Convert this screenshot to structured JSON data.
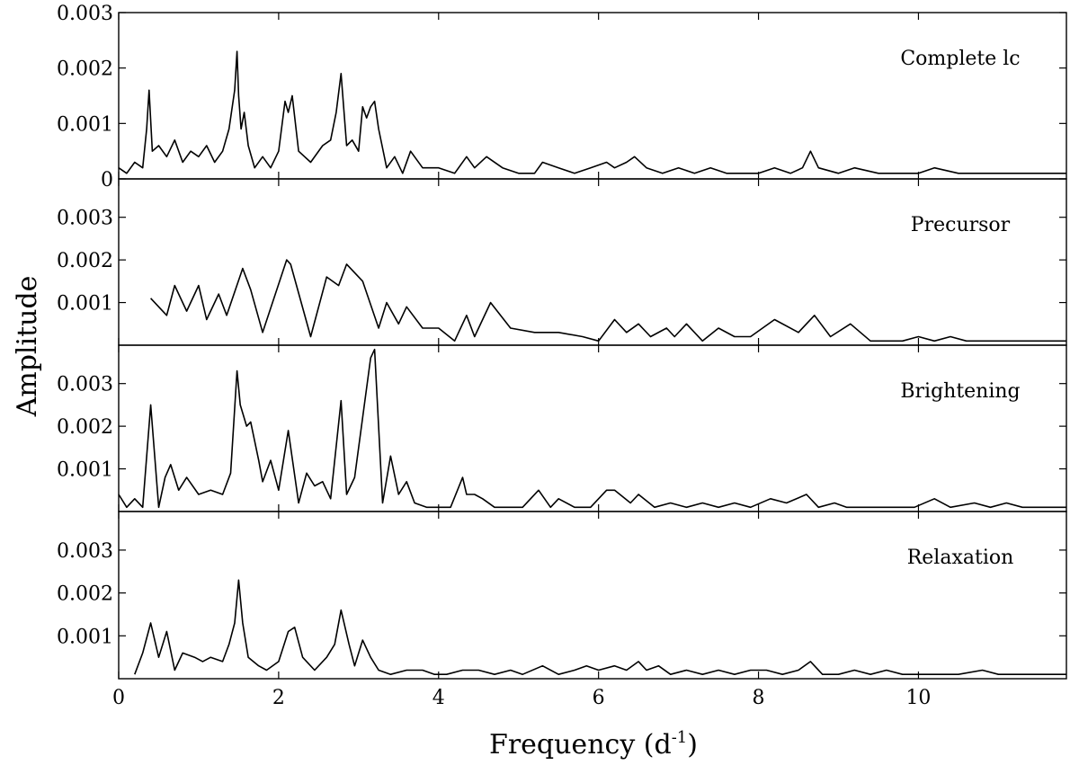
{
  "chart_data": {
    "type": "line",
    "xlabel_main": "Frequency (d",
    "xlabel_sup": "-1",
    "xlabel_tail": ")",
    "ylabel": "Amplitude",
    "xlim": [
      0,
      11.85
    ],
    "x_ticks": [
      "0",
      "2",
      "4",
      "6",
      "8",
      "10"
    ],
    "grid": false,
    "legend": "none",
    "line_color": "#000000",
    "panels": [
      {
        "label": "Complete lc",
        "ylim": [
          0,
          0.003
        ],
        "y_ticks": [
          "0",
          "0.001",
          "0.002",
          "0.003"
        ],
        "x": [
          0,
          0.1,
          0.2,
          0.3,
          0.35,
          0.38,
          0.42,
          0.5,
          0.6,
          0.7,
          0.8,
          0.9,
          1.0,
          1.1,
          1.2,
          1.3,
          1.38,
          1.45,
          1.48,
          1.5,
          1.53,
          1.57,
          1.62,
          1.7,
          1.8,
          1.9,
          2.0,
          2.08,
          2.12,
          2.17,
          2.25,
          2.4,
          2.55,
          2.65,
          2.72,
          2.78,
          2.85,
          2.92,
          3.0,
          3.05,
          3.1,
          3.15,
          3.2,
          3.25,
          3.35,
          3.45,
          3.55,
          3.65,
          3.8,
          4.0,
          4.2,
          4.35,
          4.45,
          4.6,
          4.8,
          5.0,
          5.2,
          5.3,
          5.5,
          5.7,
          5.9,
          6.1,
          6.2,
          6.35,
          6.45,
          6.6,
          6.8,
          7.0,
          7.2,
          7.4,
          7.6,
          7.8,
          8.0,
          8.2,
          8.4,
          8.55,
          8.65,
          8.75,
          9.0,
          9.2,
          9.5,
          9.8,
          10.0,
          10.2,
          10.5,
          10.8,
          11.0,
          11.3,
          11.6,
          11.85
        ],
        "y": [
          0.0002,
          0.0001,
          0.0003,
          0.0002,
          0.0009,
          0.0016,
          0.0005,
          0.0006,
          0.0004,
          0.0007,
          0.0003,
          0.0005,
          0.0004,
          0.0006,
          0.0003,
          0.0005,
          0.0009,
          0.0016,
          0.0023,
          0.0015,
          0.0009,
          0.0012,
          0.0006,
          0.0002,
          0.0004,
          0.0002,
          0.0005,
          0.0014,
          0.0012,
          0.0015,
          0.0005,
          0.0003,
          0.0006,
          0.0007,
          0.0012,
          0.0019,
          0.0006,
          0.0007,
          0.0005,
          0.0013,
          0.0011,
          0.0013,
          0.0014,
          0.0009,
          0.0002,
          0.0004,
          0.0001,
          0.0005,
          0.0002,
          0.0002,
          0.0001,
          0.0004,
          0.0002,
          0.0004,
          0.0002,
          0.0001,
          0.0001,
          0.0003,
          0.0002,
          0.0001,
          0.0002,
          0.0003,
          0.0002,
          0.0003,
          0.0004,
          0.0002,
          0.0001,
          0.0002,
          0.0001,
          0.0002,
          0.0001,
          0.0001,
          0.0001,
          0.0002,
          0.0001,
          0.0002,
          0.0005,
          0.0002,
          0.0001,
          0.0002,
          0.0001,
          0.0001,
          0.0001,
          0.0002,
          0.0001,
          0.0001,
          0.0001,
          0.0001,
          0.0001,
          0.0001
        ]
      },
      {
        "label": "Precursor",
        "ylim": [
          0,
          0.0039
        ],
        "y_ticks": [
          "0.001",
          "0.002",
          "0.003"
        ],
        "x": [
          0.4,
          0.6,
          0.7,
          0.85,
          1.0,
          1.1,
          1.25,
          1.35,
          1.55,
          1.65,
          1.8,
          2.1,
          2.15,
          2.4,
          2.6,
          2.75,
          2.85,
          3.05,
          3.25,
          3.35,
          3.5,
          3.6,
          3.8,
          4.0,
          4.2,
          4.35,
          4.45,
          4.65,
          4.9,
          5.2,
          5.5,
          5.8,
          6.0,
          6.2,
          6.35,
          6.5,
          6.65,
          6.85,
          6.95,
          7.1,
          7.3,
          7.5,
          7.7,
          7.9,
          8.2,
          8.5,
          8.7,
          8.9,
          9.15,
          9.4,
          9.6,
          9.8,
          10.0,
          10.2,
          10.4,
          10.6,
          10.9,
          11.2,
          11.5,
          11.85
        ],
        "y": [
          0.0011,
          0.0007,
          0.0014,
          0.0008,
          0.0014,
          0.0006,
          0.0012,
          0.0007,
          0.0018,
          0.0013,
          0.0003,
          0.002,
          0.0019,
          0.0002,
          0.0016,
          0.0014,
          0.0019,
          0.0015,
          0.0004,
          0.001,
          0.0005,
          0.0009,
          0.0004,
          0.0004,
          0.0001,
          0.0007,
          0.0002,
          0.001,
          0.0004,
          0.0003,
          0.0003,
          0.0002,
          0.0001,
          0.0006,
          0.0003,
          0.0005,
          0.0002,
          0.0004,
          0.0002,
          0.0005,
          0.0001,
          0.0004,
          0.0002,
          0.0002,
          0.0006,
          0.0003,
          0.0007,
          0.0002,
          0.0005,
          0.0001,
          0.0001,
          0.0001,
          0.0002,
          0.0001,
          0.0002,
          0.0001,
          0.0001,
          0.0001,
          0.0001,
          0.0001
        ]
      },
      {
        "label": "Brightening",
        "ylim": [
          0,
          0.0039
        ],
        "y_ticks": [
          "0.001",
          "0.002",
          "0.003"
        ],
        "x": [
          0,
          0.1,
          0.2,
          0.3,
          0.4,
          0.5,
          0.58,
          0.65,
          0.75,
          0.85,
          1.0,
          1.15,
          1.3,
          1.4,
          1.48,
          1.52,
          1.6,
          1.65,
          1.75,
          1.8,
          1.9,
          2.0,
          2.12,
          2.25,
          2.35,
          2.45,
          2.55,
          2.65,
          2.78,
          2.85,
          2.95,
          3.05,
          3.15,
          3.2,
          3.3,
          3.4,
          3.5,
          3.6,
          3.7,
          3.85,
          4.0,
          4.15,
          4.3,
          4.35,
          4.45,
          4.55,
          4.7,
          4.9,
          5.05,
          5.25,
          5.4,
          5.5,
          5.7,
          5.9,
          6.1,
          6.2,
          6.4,
          6.5,
          6.7,
          6.9,
          7.1,
          7.3,
          7.5,
          7.7,
          7.9,
          8.15,
          8.35,
          8.6,
          8.75,
          8.95,
          9.1,
          9.3,
          9.5,
          9.7,
          9.95,
          10.2,
          10.4,
          10.7,
          10.9,
          11.1,
          11.3,
          11.6,
          11.85
        ],
        "y": [
          0.0004,
          0.0001,
          0.0003,
          0.0001,
          0.0025,
          0.0001,
          0.0008,
          0.0011,
          0.0005,
          0.0008,
          0.0004,
          0.0005,
          0.0004,
          0.0009,
          0.0033,
          0.0025,
          0.002,
          0.0021,
          0.0012,
          0.0007,
          0.0012,
          0.0005,
          0.0019,
          0.0002,
          0.0009,
          0.0006,
          0.0007,
          0.0003,
          0.0026,
          0.0004,
          0.0008,
          0.0022,
          0.0036,
          0.0038,
          0.0002,
          0.0013,
          0.0004,
          0.0007,
          0.0002,
          0.0001,
          0.0001,
          0.0001,
          0.0008,
          0.0004,
          0.0004,
          0.0003,
          0.0001,
          0.0001,
          0.0001,
          0.0005,
          0.0001,
          0.0003,
          0.0001,
          0.0001,
          0.0005,
          0.0005,
          0.0002,
          0.0004,
          0.0001,
          0.0002,
          0.0001,
          0.0002,
          0.0001,
          0.0002,
          0.0001,
          0.0003,
          0.0002,
          0.0004,
          0.0001,
          0.0002,
          0.0001,
          0.0001,
          0.0001,
          0.0001,
          0.0001,
          0.0003,
          0.0001,
          0.0002,
          0.0001,
          0.0002,
          0.0001,
          0.0001,
          0.0001
        ]
      },
      {
        "label": "Relaxation",
        "ylim": [
          0,
          0.0039
        ],
        "y_ticks": [
          "0.001",
          "0.002",
          "0.003"
        ],
        "x": [
          0.2,
          0.3,
          0.4,
          0.5,
          0.6,
          0.7,
          0.8,
          0.95,
          1.05,
          1.15,
          1.3,
          1.38,
          1.45,
          1.5,
          1.55,
          1.62,
          1.75,
          1.85,
          2.0,
          2.12,
          2.2,
          2.3,
          2.45,
          2.6,
          2.7,
          2.78,
          2.88,
          2.95,
          3.05,
          3.15,
          3.25,
          3.4,
          3.6,
          3.8,
          3.95,
          4.1,
          4.3,
          4.5,
          4.7,
          4.9,
          5.05,
          5.3,
          5.5,
          5.7,
          5.85,
          6.0,
          6.2,
          6.35,
          6.5,
          6.6,
          6.75,
          6.9,
          7.1,
          7.3,
          7.5,
          7.7,
          7.9,
          8.1,
          8.3,
          8.5,
          8.65,
          8.8,
          9.0,
          9.2,
          9.4,
          9.6,
          9.8,
          10.0,
          10.2,
          10.5,
          10.8,
          11.0,
          11.2,
          11.5,
          11.85
        ],
        "y": [
          0.0001,
          0.0006,
          0.0013,
          0.0005,
          0.0011,
          0.0002,
          0.0006,
          0.0005,
          0.0004,
          0.0005,
          0.0004,
          0.0008,
          0.0013,
          0.0023,
          0.0013,
          0.0005,
          0.0003,
          0.0002,
          0.0004,
          0.0011,
          0.0012,
          0.0005,
          0.0002,
          0.0005,
          0.0008,
          0.0016,
          0.0008,
          0.0003,
          0.0009,
          0.0005,
          0.0002,
          0.0001,
          0.0002,
          0.0002,
          0.0001,
          0.0001,
          0.0002,
          0.0002,
          0.0001,
          0.0002,
          0.0001,
          0.0003,
          0.0001,
          0.0002,
          0.0003,
          0.0002,
          0.0003,
          0.0002,
          0.0004,
          0.0002,
          0.0003,
          0.0001,
          0.0002,
          0.0001,
          0.0002,
          0.0001,
          0.0002,
          0.0002,
          0.0001,
          0.0002,
          0.0004,
          0.0001,
          0.0001,
          0.0002,
          0.0001,
          0.0002,
          0.0001,
          0.0001,
          0.0001,
          0.0001,
          0.0002,
          0.0001,
          0.0001,
          0.0001,
          0.0001
        ]
      }
    ]
  }
}
